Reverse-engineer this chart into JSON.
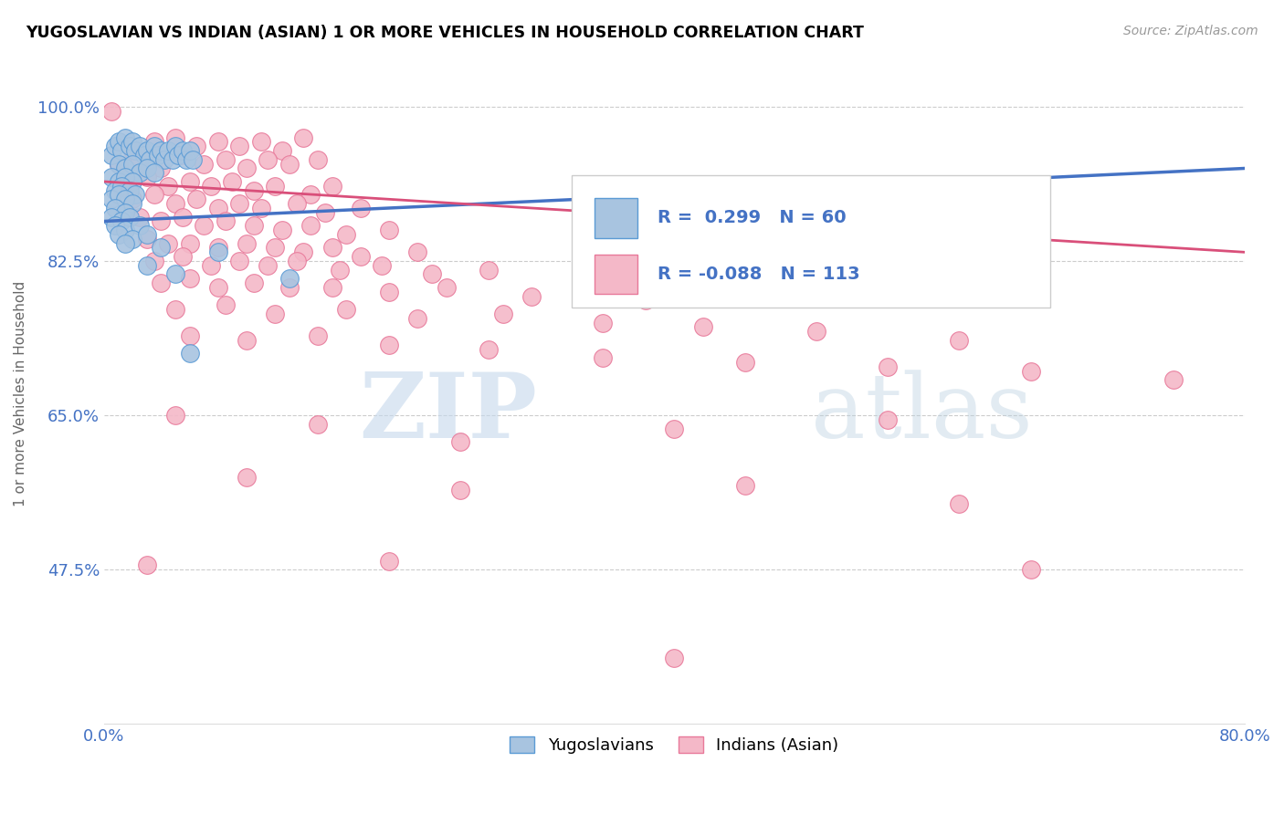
{
  "title": "YUGOSLAVIAN VS INDIAN (ASIAN) 1 OR MORE VEHICLES IN HOUSEHOLD CORRELATION CHART",
  "source": "Source: ZipAtlas.com",
  "ylabel": "1 or more Vehicles in Household",
  "xlim": [
    0.0,
    80.0
  ],
  "ylim": [
    30.0,
    105.0
  ],
  "xticks": [
    0.0,
    80.0
  ],
  "xtick_labels": [
    "0.0%",
    "80.0%"
  ],
  "yticks": [
    47.5,
    65.0,
    82.5,
    100.0
  ],
  "ytick_labels": [
    "47.5%",
    "65.0%",
    "82.5%",
    "100.0%"
  ],
  "blue_R": 0.299,
  "blue_N": 60,
  "pink_R": -0.088,
  "pink_N": 113,
  "legend_labels": [
    "Yugoslavians",
    "Indians (Asian)"
  ],
  "blue_color": "#a8c4e0",
  "pink_color": "#f4b8c8",
  "blue_edge_color": "#5b9bd5",
  "pink_edge_color": "#e8799a",
  "blue_line_color": "#4472c4",
  "pink_line_color": "#d94f7a",
  "watermark_zip": "ZIP",
  "watermark_atlas": "atlas",
  "watermark_color_zip": "#c5d8ec",
  "watermark_color_atlas": "#b8cfe0",
  "blue_scatter": [
    [
      0.5,
      94.5
    ],
    [
      0.8,
      95.5
    ],
    [
      1.0,
      96.0
    ],
    [
      1.2,
      95.0
    ],
    [
      1.5,
      96.5
    ],
    [
      1.8,
      95.5
    ],
    [
      2.0,
      96.0
    ],
    [
      2.2,
      95.0
    ],
    [
      2.5,
      95.5
    ],
    [
      2.8,
      94.5
    ],
    [
      3.0,
      95.0
    ],
    [
      3.2,
      94.0
    ],
    [
      3.5,
      95.5
    ],
    [
      3.8,
      94.5
    ],
    [
      4.0,
      95.0
    ],
    [
      4.2,
      94.0
    ],
    [
      4.5,
      95.0
    ],
    [
      4.8,
      94.0
    ],
    [
      5.0,
      95.5
    ],
    [
      5.2,
      94.5
    ],
    [
      5.5,
      95.0
    ],
    [
      5.8,
      94.0
    ],
    [
      6.0,
      95.0
    ],
    [
      6.2,
      94.0
    ],
    [
      1.0,
      93.5
    ],
    [
      1.5,
      93.0
    ],
    [
      2.0,
      93.5
    ],
    [
      2.5,
      92.5
    ],
    [
      3.0,
      93.0
    ],
    [
      3.5,
      92.5
    ],
    [
      0.5,
      92.0
    ],
    [
      1.0,
      91.5
    ],
    [
      1.5,
      92.0
    ],
    [
      2.0,
      91.5
    ],
    [
      0.8,
      90.5
    ],
    [
      1.2,
      91.0
    ],
    [
      1.8,
      90.5
    ],
    [
      2.2,
      90.0
    ],
    [
      0.5,
      89.5
    ],
    [
      1.0,
      90.0
    ],
    [
      1.5,
      89.5
    ],
    [
      2.0,
      89.0
    ],
    [
      0.8,
      88.5
    ],
    [
      1.5,
      88.0
    ],
    [
      0.5,
      87.5
    ],
    [
      1.2,
      87.0
    ],
    [
      1.8,
      87.5
    ],
    [
      0.8,
      86.5
    ],
    [
      1.5,
      86.0
    ],
    [
      2.5,
      86.5
    ],
    [
      1.0,
      85.5
    ],
    [
      2.0,
      85.0
    ],
    [
      3.0,
      85.5
    ],
    [
      1.5,
      84.5
    ],
    [
      4.0,
      84.0
    ],
    [
      8.0,
      83.5
    ],
    [
      6.0,
      72.0
    ],
    [
      13.0,
      80.5
    ],
    [
      3.0,
      82.0
    ],
    [
      5.0,
      81.0
    ]
  ],
  "pink_scatter": [
    [
      0.5,
      99.5
    ],
    [
      2.0,
      95.0
    ],
    [
      3.5,
      96.0
    ],
    [
      5.0,
      96.5
    ],
    [
      6.5,
      95.5
    ],
    [
      8.0,
      96.0
    ],
    [
      9.5,
      95.5
    ],
    [
      11.0,
      96.0
    ],
    [
      12.5,
      95.0
    ],
    [
      14.0,
      96.5
    ],
    [
      1.0,
      93.5
    ],
    [
      2.5,
      94.0
    ],
    [
      4.0,
      93.0
    ],
    [
      5.5,
      94.5
    ],
    [
      7.0,
      93.5
    ],
    [
      8.5,
      94.0
    ],
    [
      10.0,
      93.0
    ],
    [
      11.5,
      94.0
    ],
    [
      13.0,
      93.5
    ],
    [
      15.0,
      94.0
    ],
    [
      1.5,
      91.5
    ],
    [
      3.0,
      92.0
    ],
    [
      4.5,
      91.0
    ],
    [
      6.0,
      91.5
    ],
    [
      7.5,
      91.0
    ],
    [
      9.0,
      91.5
    ],
    [
      10.5,
      90.5
    ],
    [
      12.0,
      91.0
    ],
    [
      14.5,
      90.0
    ],
    [
      16.0,
      91.0
    ],
    [
      2.0,
      89.5
    ],
    [
      3.5,
      90.0
    ],
    [
      5.0,
      89.0
    ],
    [
      6.5,
      89.5
    ],
    [
      8.0,
      88.5
    ],
    [
      9.5,
      89.0
    ],
    [
      11.0,
      88.5
    ],
    [
      13.5,
      89.0
    ],
    [
      15.5,
      88.0
    ],
    [
      18.0,
      88.5
    ],
    [
      2.5,
      87.5
    ],
    [
      4.0,
      87.0
    ],
    [
      5.5,
      87.5
    ],
    [
      7.0,
      86.5
    ],
    [
      8.5,
      87.0
    ],
    [
      10.5,
      86.5
    ],
    [
      12.5,
      86.0
    ],
    [
      14.5,
      86.5
    ],
    [
      17.0,
      85.5
    ],
    [
      20.0,
      86.0
    ],
    [
      3.0,
      85.0
    ],
    [
      4.5,
      84.5
    ],
    [
      6.0,
      84.5
    ],
    [
      8.0,
      84.0
    ],
    [
      10.0,
      84.5
    ],
    [
      12.0,
      84.0
    ],
    [
      14.0,
      83.5
    ],
    [
      16.0,
      84.0
    ],
    [
      18.0,
      83.0
    ],
    [
      22.0,
      83.5
    ],
    [
      3.5,
      82.5
    ],
    [
      5.5,
      83.0
    ],
    [
      7.5,
      82.0
    ],
    [
      9.5,
      82.5
    ],
    [
      11.5,
      82.0
    ],
    [
      13.5,
      82.5
    ],
    [
      16.5,
      81.5
    ],
    [
      19.5,
      82.0
    ],
    [
      23.0,
      81.0
    ],
    [
      27.0,
      81.5
    ],
    [
      4.0,
      80.0
    ],
    [
      6.0,
      80.5
    ],
    [
      8.0,
      79.5
    ],
    [
      10.5,
      80.0
    ],
    [
      13.0,
      79.5
    ],
    [
      16.0,
      79.5
    ],
    [
      20.0,
      79.0
    ],
    [
      24.0,
      79.5
    ],
    [
      30.0,
      78.5
    ],
    [
      38.0,
      78.0
    ],
    [
      5.0,
      77.0
    ],
    [
      8.5,
      77.5
    ],
    [
      12.0,
      76.5
    ],
    [
      17.0,
      77.0
    ],
    [
      22.0,
      76.0
    ],
    [
      28.0,
      76.5
    ],
    [
      35.0,
      75.5
    ],
    [
      42.0,
      75.0
    ],
    [
      50.0,
      74.5
    ],
    [
      60.0,
      73.5
    ],
    [
      6.0,
      74.0
    ],
    [
      10.0,
      73.5
    ],
    [
      15.0,
      74.0
    ],
    [
      20.0,
      73.0
    ],
    [
      27.0,
      72.5
    ],
    [
      35.0,
      71.5
    ],
    [
      45.0,
      71.0
    ],
    [
      55.0,
      70.5
    ],
    [
      65.0,
      70.0
    ],
    [
      75.0,
      69.0
    ],
    [
      5.0,
      65.0
    ],
    [
      15.0,
      64.0
    ],
    [
      25.0,
      62.0
    ],
    [
      40.0,
      63.5
    ],
    [
      55.0,
      64.5
    ],
    [
      10.0,
      58.0
    ],
    [
      25.0,
      56.5
    ],
    [
      45.0,
      57.0
    ],
    [
      60.0,
      55.0
    ],
    [
      3.0,
      48.0
    ],
    [
      20.0,
      48.5
    ],
    [
      65.0,
      47.5
    ],
    [
      40.0,
      37.5
    ]
  ]
}
